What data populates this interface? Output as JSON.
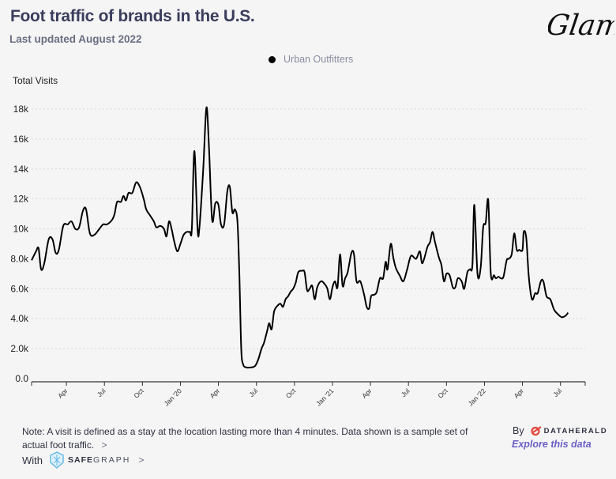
{
  "header": {
    "title": "Foot traffic of brands in the U.S.",
    "subtitle": "Last updated August 2022",
    "logo_text": "Glam"
  },
  "footer": {
    "note": "Note: A visit is defined as a stay at the location lasting more than 4 minutes. Data shown is a sample set of actual foot traffic.",
    "note_chevron": ">",
    "with_label": "With",
    "partner_bold": "SAFE",
    "partner_light": "GRAPH",
    "partner_chevron": ">",
    "by_label": "By",
    "by_brand": "DATAHERALD",
    "explore_link": "Explore this data"
  },
  "chart_data": {
    "type": "line",
    "title": "Foot traffic of brands in the U.S.",
    "xlabel": "",
    "ylabel": "Total Visits",
    "ylim": [
      0,
      18000
    ],
    "xlim_months_since_jan_2019": [
      0.25,
      44.0
    ],
    "grid": true,
    "legend_position": "top-center",
    "yticks": [
      {
        "value": 0,
        "label": "0.0"
      },
      {
        "value": 2000,
        "label": "2.0k"
      },
      {
        "value": 4000,
        "label": "4.0k"
      },
      {
        "value": 6000,
        "label": "6.0k"
      },
      {
        "value": 8000,
        "label": "8.0k"
      },
      {
        "value": 10000,
        "label": "10k"
      },
      {
        "value": 12000,
        "label": "12k"
      },
      {
        "value": 14000,
        "label": "14k"
      },
      {
        "value": 16000,
        "label": "16k"
      },
      {
        "value": 18000,
        "label": "18k"
      }
    ],
    "xticks": [
      {
        "month": 3,
        "label": "Apr"
      },
      {
        "month": 6,
        "label": "Jul"
      },
      {
        "month": 9,
        "label": "Oct"
      },
      {
        "month": 12,
        "label": "Jan '20"
      },
      {
        "month": 15,
        "label": "Apr"
      },
      {
        "month": 18,
        "label": "Jul"
      },
      {
        "month": 21,
        "label": "Oct"
      },
      {
        "month": 24,
        "label": "Jan '21"
      },
      {
        "month": 27,
        "label": "Apr"
      },
      {
        "month": 30,
        "label": "Jul"
      },
      {
        "month": 33,
        "label": "Oct"
      },
      {
        "month": 36,
        "label": "Jan '22"
      },
      {
        "month": 39,
        "label": "Apr"
      },
      {
        "month": 42,
        "label": "Jul"
      }
    ],
    "series": [
      {
        "name": "Urban Outfitters",
        "color": "#000000",
        "x_unit": "months since Jan 2019",
        "points": [
          [
            0.25,
            7900
          ],
          [
            0.6,
            8500
          ],
          [
            0.8,
            8700
          ],
          [
            1.0,
            7300
          ],
          [
            1.25,
            7700
          ],
          [
            1.6,
            9300
          ],
          [
            1.9,
            9300
          ],
          [
            2.15,
            8400
          ],
          [
            2.4,
            8600
          ],
          [
            2.75,
            10200
          ],
          [
            3.1,
            10300
          ],
          [
            3.4,
            10500
          ],
          [
            3.7,
            10000
          ],
          [
            4.0,
            10100
          ],
          [
            4.3,
            11200
          ],
          [
            4.55,
            11300
          ],
          [
            4.85,
            9700
          ],
          [
            5.2,
            9600
          ],
          [
            5.6,
            10000
          ],
          [
            5.9,
            10300
          ],
          [
            6.2,
            10300
          ],
          [
            6.6,
            10600
          ],
          [
            6.8,
            11000
          ],
          [
            7.0,
            11800
          ],
          [
            7.3,
            11800
          ],
          [
            7.5,
            12200
          ],
          [
            7.7,
            11900
          ],
          [
            7.9,
            12400
          ],
          [
            8.2,
            12400
          ],
          [
            8.5,
            13100
          ],
          [
            8.8,
            12800
          ],
          [
            9.1,
            12000
          ],
          [
            9.3,
            11300
          ],
          [
            9.6,
            10900
          ],
          [
            9.9,
            10500
          ],
          [
            10.1,
            10100
          ],
          [
            10.4,
            10200
          ],
          [
            10.7,
            10000
          ],
          [
            10.9,
            9500
          ],
          [
            11.1,
            10500
          ],
          [
            11.3,
            10000
          ],
          [
            11.5,
            9200
          ],
          [
            11.75,
            8500
          ],
          [
            12.0,
            9000
          ],
          [
            12.25,
            9600
          ],
          [
            12.5,
            9800
          ],
          [
            12.75,
            9800
          ],
          [
            12.9,
            10000
          ],
          [
            13.1,
            15200
          ],
          [
            13.35,
            10000
          ],
          [
            13.5,
            10100
          ],
          [
            13.8,
            14000
          ],
          [
            14.05,
            18100
          ],
          [
            14.25,
            15500
          ],
          [
            14.5,
            10600
          ],
          [
            14.75,
            11700
          ],
          [
            15.0,
            11600
          ],
          [
            15.2,
            10300
          ],
          [
            15.45,
            10300
          ],
          [
            15.7,
            12500
          ],
          [
            15.9,
            12800
          ],
          [
            16.1,
            11100
          ],
          [
            16.3,
            11300
          ],
          [
            16.5,
            10500
          ],
          [
            16.65,
            7000
          ],
          [
            16.8,
            2000
          ],
          [
            16.95,
            950
          ],
          [
            17.2,
            750
          ],
          [
            17.6,
            750
          ],
          [
            17.9,
            850
          ],
          [
            18.15,
            1300
          ],
          [
            18.4,
            2000
          ],
          [
            18.6,
            2400
          ],
          [
            18.85,
            3200
          ],
          [
            19.0,
            3700
          ],
          [
            19.2,
            3300
          ],
          [
            19.4,
            4500
          ],
          [
            19.7,
            4900
          ],
          [
            19.9,
            5000
          ],
          [
            20.1,
            4800
          ],
          [
            20.3,
            5300
          ],
          [
            20.5,
            5500
          ],
          [
            20.7,
            5800
          ],
          [
            20.9,
            6000
          ],
          [
            21.1,
            6400
          ],
          [
            21.3,
            7100
          ],
          [
            21.6,
            7200
          ],
          [
            21.8,
            7100
          ],
          [
            22.0,
            5900
          ],
          [
            22.2,
            6000
          ],
          [
            22.4,
            6200
          ],
          [
            22.6,
            5300
          ],
          [
            22.8,
            6100
          ],
          [
            23.1,
            6500
          ],
          [
            23.4,
            6300
          ],
          [
            23.6,
            6000
          ],
          [
            23.8,
            5300
          ],
          [
            24.0,
            6100
          ],
          [
            24.2,
            6500
          ],
          [
            24.4,
            6100
          ],
          [
            24.6,
            8300
          ],
          [
            24.8,
            6200
          ],
          [
            25.0,
            6700
          ],
          [
            25.2,
            7100
          ],
          [
            25.5,
            8400
          ],
          [
            25.7,
            8300
          ],
          [
            25.9,
            6500
          ],
          [
            26.2,
            6500
          ],
          [
            26.5,
            5600
          ],
          [
            26.7,
            4800
          ],
          [
            26.9,
            4700
          ],
          [
            27.05,
            5500
          ],
          [
            27.3,
            5600
          ],
          [
            27.5,
            5800
          ],
          [
            27.75,
            6700
          ],
          [
            28.0,
            6700
          ],
          [
            28.2,
            7800
          ],
          [
            28.35,
            7300
          ],
          [
            28.6,
            9000
          ],
          [
            28.8,
            8100
          ],
          [
            29.0,
            7400
          ],
          [
            29.3,
            6900
          ],
          [
            29.6,
            6500
          ],
          [
            29.9,
            7300
          ],
          [
            30.2,
            8200
          ],
          [
            30.6,
            8000
          ],
          [
            30.9,
            8500
          ],
          [
            31.1,
            7700
          ],
          [
            31.5,
            8800
          ],
          [
            31.7,
            9100
          ],
          [
            31.9,
            9800
          ],
          [
            32.1,
            9100
          ],
          [
            32.4,
            8100
          ],
          [
            32.6,
            7600
          ],
          [
            32.8,
            6500
          ],
          [
            33.0,
            7000
          ],
          [
            33.25,
            6900
          ],
          [
            33.5,
            6100
          ],
          [
            33.7,
            6100
          ],
          [
            33.9,
            6700
          ],
          [
            34.2,
            6500
          ],
          [
            34.4,
            6000
          ],
          [
            34.65,
            7100
          ],
          [
            34.85,
            7300
          ],
          [
            35.05,
            7600
          ],
          [
            35.2,
            11600
          ],
          [
            35.45,
            7000
          ],
          [
            35.7,
            7400
          ],
          [
            35.9,
            10100
          ],
          [
            36.1,
            10400
          ],
          [
            36.3,
            11900
          ],
          [
            36.5,
            7000
          ],
          [
            36.75,
            6900
          ],
          [
            36.9,
            6700
          ],
          [
            37.1,
            6800
          ],
          [
            37.3,
            6700
          ],
          [
            37.5,
            6800
          ],
          [
            37.75,
            7900
          ],
          [
            37.9,
            8000
          ],
          [
            38.15,
            8300
          ],
          [
            38.35,
            9700
          ],
          [
            38.55,
            8600
          ],
          [
            38.75,
            8600
          ],
          [
            39.0,
            8600
          ],
          [
            39.1,
            9800
          ],
          [
            39.3,
            9400
          ],
          [
            39.5,
            6800
          ],
          [
            39.75,
            5300
          ],
          [
            40.0,
            5700
          ],
          [
            40.2,
            5700
          ],
          [
            40.45,
            6500
          ],
          [
            40.65,
            6500
          ],
          [
            40.9,
            5500
          ],
          [
            41.2,
            5300
          ],
          [
            41.5,
            4600
          ],
          [
            41.8,
            4300
          ],
          [
            42.1,
            4100
          ],
          [
            42.4,
            4200
          ],
          [
            42.6,
            4400
          ]
        ]
      }
    ]
  }
}
